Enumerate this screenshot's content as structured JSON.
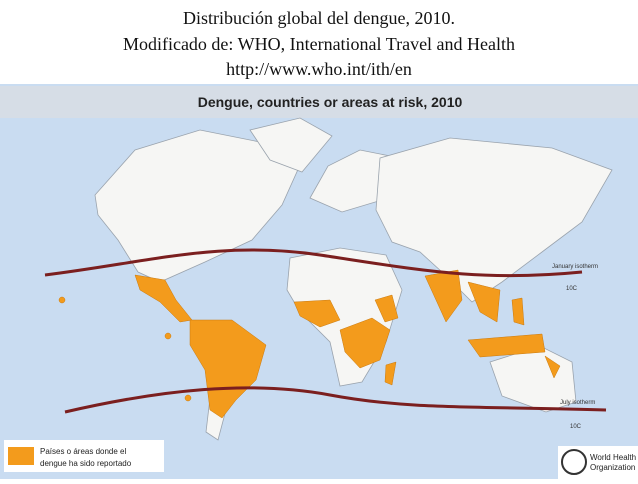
{
  "caption": {
    "lines": [
      "Distribución global del dengue, 2010.",
      "Modificado de: WHO, International Travel and Health",
      "http://www.who.int/ith/en"
    ]
  },
  "map": {
    "title": "Dengue, countries or areas at risk, 2010",
    "isotherms": [
      {
        "label": "January isotherm",
        "temp": "10C"
      },
      {
        "label": "July isotherm",
        "temp": "10C"
      }
    ],
    "legend": {
      "lines": [
        "Países o áreas donde el",
        "dengue ha sido reportado"
      ]
    },
    "logo": {
      "lines": [
        "World Health",
        "Organization"
      ]
    }
  }
}
